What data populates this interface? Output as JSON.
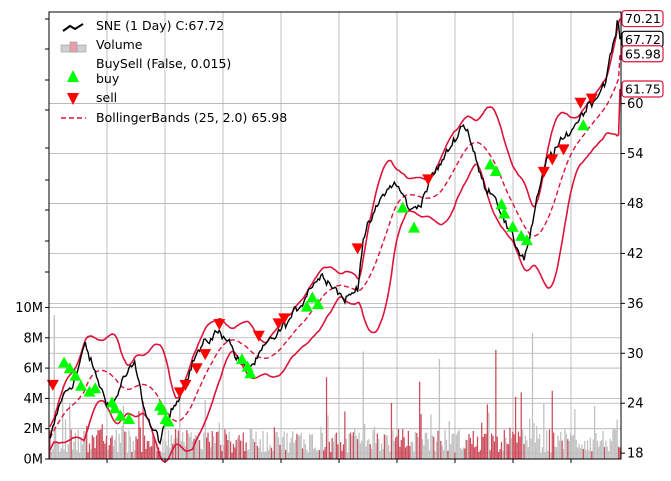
{
  "chart_data": {
    "type": "line",
    "title": "",
    "price_axis": {
      "side": "right",
      "ticks": [
        18,
        24,
        30,
        36,
        42,
        48,
        54,
        60
      ],
      "ylim": [
        17.3,
        71.0
      ]
    },
    "volume_axis": {
      "side": "left",
      "ticks": [
        "0M",
        "2M",
        "4M",
        "6M",
        "8M",
        "10M"
      ],
      "tick_values": [
        0,
        2,
        4,
        6,
        8,
        10
      ],
      "ylim": [
        0,
        29.5
      ]
    },
    "grid": true,
    "legend": {
      "placement": "top-left",
      "entries": [
        {
          "label": "SNE (1 Day) C:67.72",
          "marker": "line",
          "color": "#000000"
        },
        {
          "label": "Volume",
          "marker": "bar",
          "color": "#e8a0a8"
        },
        {
          "label": "BuySell (False, 0.015)",
          "marker": "none"
        },
        {
          "label": "buy",
          "marker": "triangle-up",
          "color": "#00ff00"
        },
        {
          "label": "sell",
          "marker": "triangle-down",
          "color": "#ff0000"
        },
        {
          "label": "BollingerBands (25, 2.0) 65.98",
          "marker": "dashed-line",
          "color": "#dc143c"
        }
      ]
    },
    "price_tags": [
      {
        "value": "70.21",
        "price": 70.21,
        "style": "red-border"
      },
      {
        "value": "67.72",
        "price": 67.72,
        "style": "black-border"
      },
      {
        "value": "65.98",
        "price": 65.98,
        "style": "red-border"
      },
      {
        "value": "61.75",
        "price": 61.75,
        "style": "red-border"
      }
    ],
    "close_keypoints": [
      [
        0,
        19.5
      ],
      [
        8,
        24.5
      ],
      [
        18,
        27
      ],
      [
        25,
        31
      ],
      [
        32,
        27.5
      ],
      [
        38,
        25
      ],
      [
        44,
        23.5
      ],
      [
        52,
        27
      ],
      [
        60,
        28.5
      ],
      [
        66,
        24
      ],
      [
        72,
        21
      ],
      [
        78,
        19.5
      ],
      [
        84,
        22
      ],
      [
        90,
        24.5
      ],
      [
        96,
        27
      ],
      [
        104,
        30
      ],
      [
        112,
        31.5
      ],
      [
        118,
        32.5
      ],
      [
        126,
        32
      ],
      [
        132,
        29.5
      ],
      [
        138,
        28
      ],
      [
        146,
        29
      ],
      [
        154,
        31
      ],
      [
        162,
        32.5
      ],
      [
        170,
        34
      ],
      [
        178,
        36
      ],
      [
        186,
        38.5
      ],
      [
        194,
        39.5
      ],
      [
        202,
        38
      ],
      [
        208,
        36.5
      ],
      [
        214,
        37
      ],
      [
        218,
        38
      ],
      [
        222,
        44
      ],
      [
        228,
        46
      ],
      [
        236,
        49
      ],
      [
        244,
        50.5
      ],
      [
        250,
        49
      ],
      [
        256,
        47
      ],
      [
        262,
        48
      ],
      [
        270,
        51
      ],
      [
        278,
        53
      ],
      [
        286,
        55.5
      ],
      [
        292,
        57.5
      ],
      [
        296,
        57
      ],
      [
        302,
        53
      ],
      [
        308,
        50
      ],
      [
        314,
        49.5
      ],
      [
        318,
        48
      ],
      [
        324,
        45
      ],
      [
        330,
        43
      ],
      [
        336,
        41.5
      ],
      [
        340,
        44
      ],
      [
        346,
        49
      ],
      [
        352,
        53
      ],
      [
        358,
        54.5
      ],
      [
        364,
        55.5
      ],
      [
        370,
        57
      ],
      [
        376,
        58.5
      ],
      [
        382,
        60
      ],
      [
        388,
        61
      ],
      [
        394,
        63
      ],
      [
        400,
        67.72
      ]
    ],
    "buy_signals": [
      [
        10,
        28.9
      ],
      [
        14,
        28.2
      ],
      [
        18,
        27.3
      ],
      [
        22,
        26.1
      ],
      [
        28,
        25.4
      ],
      [
        32,
        25.8
      ],
      [
        44,
        24.1
      ],
      [
        46,
        23.4
      ],
      [
        50,
        22.5
      ],
      [
        56,
        22.1
      ],
      [
        78,
        23.7
      ],
      [
        80,
        23.2
      ],
      [
        82,
        22.1
      ],
      [
        84,
        21.8
      ],
      [
        136,
        29.3
      ],
      [
        140,
        28.4
      ],
      [
        142,
        27.6
      ],
      [
        182,
        35.6
      ],
      [
        186,
        36.7
      ],
      [
        190,
        35.9
      ],
      [
        250,
        47.5
      ],
      [
        258,
        45.1
      ],
      [
        312,
        52.7
      ],
      [
        316,
        51.9
      ],
      [
        320,
        47.9
      ],
      [
        322,
        46.8
      ],
      [
        328,
        45.2
      ],
      [
        334,
        44.1
      ],
      [
        338,
        43.6
      ],
      [
        378,
        57.4
      ]
    ],
    "sell_signals": [
      [
        2,
        26.2
      ],
      [
        92,
        25.3
      ],
      [
        96,
        26.2
      ],
      [
        104,
        28.2
      ],
      [
        110,
        29.9
      ],
      [
        120,
        33.5
      ],
      [
        148,
        32.1
      ],
      [
        162,
        33.6
      ],
      [
        166,
        34.2
      ],
      [
        218,
        42.6
      ],
      [
        268,
        50.9
      ],
      [
        350,
        51.8
      ],
      [
        356,
        53.3
      ],
      [
        364,
        54.5
      ],
      [
        376,
        60.1
      ],
      [
        384,
        60.6
      ]
    ],
    "volume_series": {
      "name": "Volume",
      "typical_range_m": [
        0.5,
        2.5
      ],
      "notable_spikes_m": [
        [
          3,
          9.5
        ],
        [
          9,
          4.8
        ],
        [
          14,
          3.7
        ],
        [
          52,
          3.5
        ],
        [
          66,
          3.8
        ],
        [
          92,
          4.6
        ],
        [
          110,
          3.9
        ],
        [
          196,
          5.4
        ],
        [
          222,
          7.1
        ],
        [
          242,
          3.7
        ],
        [
          262,
          5.1
        ],
        [
          276,
          6.6
        ],
        [
          310,
          3.6
        ],
        [
          316,
          7.2
        ],
        [
          330,
          4.1
        ],
        [
          334,
          4.4
        ],
        [
          342,
          8.3
        ],
        [
          350,
          3.7
        ],
        [
          356,
          4.5
        ],
        [
          372,
          3.3
        ],
        [
          386,
          3.5
        ]
      ]
    },
    "colors": {
      "close_line": "#000000",
      "bands": "#dc143c",
      "volume_up": "#c0c0c0",
      "volume_down": "#cd4c5c",
      "buy": "#00ff00",
      "sell": "#ff0000",
      "grid": "#b0b0b0"
    }
  }
}
